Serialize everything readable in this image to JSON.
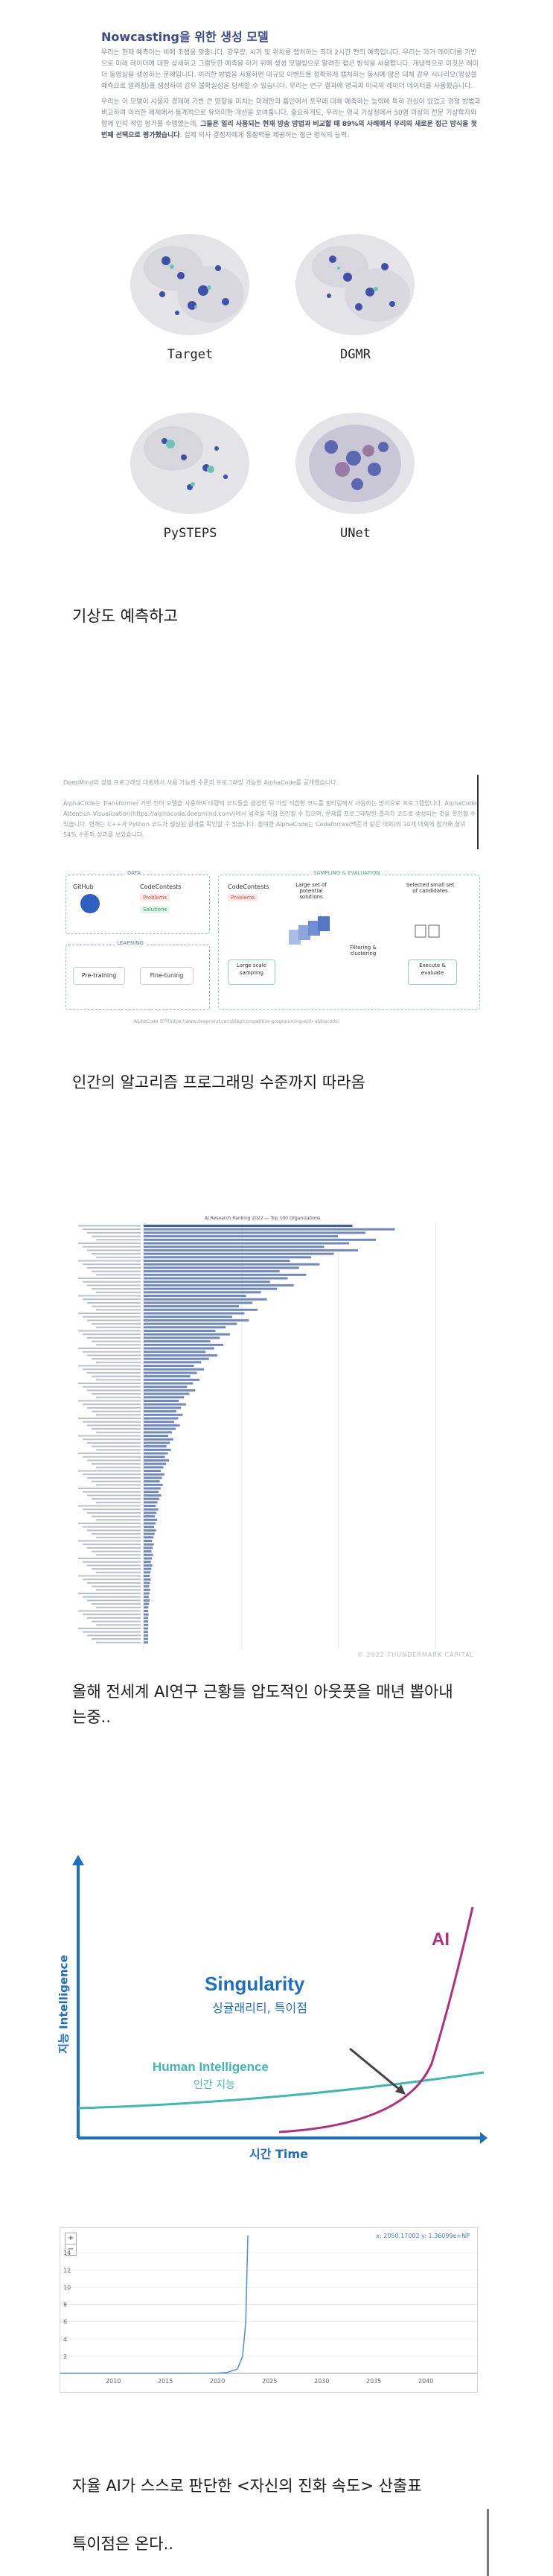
{
  "nowcasting": {
    "title": "Nowcasting을 위한 생성 모델",
    "paragraph1": "우리는 현재 예측이는 비에 초점을 맞춥니다. 강우량, 시기 및 위치를 캡처하는 최대 2시간 전의 예측입니다. 우리는 과거 레이더를 기반으로 미래 레이더에 대한 상세하고 그럴듯한 예측을 하기 위해 생성 모델링으로 알려진 접근 방식을 사용합니다. 개념적으로 이것은 레이더 동영상을 생성하는 문제입니다. 이러한 방법을 사용하면 대규모 이벤트를 정확하게 캡처하는 동시에 많은 대체 강우 시나리오(앙상블 예측으로 알려짐)를 생성하여 강우 불확실성을 탐색할 수 있습니다. 우리는 연구 결과에 영국과 미국의 레이더 데이터를 사용했습니다.",
    "paragraph2_a": "우리는 이 모델이 사용자 경제에 기반 큰 영향을 미치는 미래만의 흡인에서 포우에 대해 예측하는 능력에 특히 관심이 있었고 경쟁 방법과 비교하여 이러한 제체에서 통계적으로 유의미한 개선을 보여줍니다. 중요하게도, 우리는 영국 기상청에서 50명 이상의 전문 기상학자와 함께 인지 작업 평가를 수행했는데, ",
    "paragraph2_b": "그들은 일리 사용되는 현재 방송 방법과 비교할 때 89%의 사례에서 우리의 새로운 접근 방식을 첫 번째 선택으로 평가했습니다",
    "paragraph2_c": ". 실제 의사 결정자에게 통찰력을 제공하는 접근 방식의 능력.",
    "panels": [
      "Target",
      "DGMR",
      "PySTEPS",
      "UNet"
    ]
  },
  "captions": {
    "weather": "기상도 예측하고",
    "coding": "인간의 알고리즘 프로그래밍 수준까지 따라옴",
    "research_line1": "올해 전세계 AI연구 근황들 압도적인 아웃풋을 매년 뽑아내",
    "research_line2": "는중..",
    "autonomous": "자율 AI가 스스로 판단한 <자신의 진화 속도> 산출표",
    "singularity_coming": "특이점은 온다.."
  },
  "alphacode": {
    "intro": "DeepMind의 경쟁 프로그래밍 대회에서 사용 가능한 수준의 프로그래밍 가능한 AlphaCode를 공개했습니다.",
    "body": "AlphaCode는 Transformer 기반 언어 모델을 사용하여 대량의 코드들을 생성한 뒤 가장 적합한 코드를 필터링해서 사용하는 방식으로 프로그램합니다. AlphaCode Attention Visualization(https://alphacode.deepmind.com/)에서 생각을 직접 확인할 수 있으며, 문제를 프로그래밍한 결과가 코드로 생성되는 것을 확인할 수 있습니다. 현재는 C++과 Python 코드가 생성된 결과를 확인할 수 있습니다. 참여한 AlphaCode는 Codeforces(백준과 같은 대회)의 10개 대회에 참가해 상위 54% 수준의 성과를 보였습니다.",
    "data_label": "DATA",
    "learning_label": "LEARNING",
    "sampling_label": "SAMPLING & EVALUATION",
    "github": "GitHub",
    "codecontests": "CodeContests",
    "problems": "Problems",
    "solutions": "Solutions",
    "codecontests2": "CodeContests",
    "problems2": "Problems",
    "pretraining": "Pre-training",
    "finetuning": "Fine-tuning",
    "large_sampling": "Large scale sampling",
    "large_set": "Large set of potential solutions",
    "filtering": "Filtering & clustering",
    "selected": "Selected small set of candidates",
    "execute": "Execute & evaluate",
    "footer": "AlphaCode 요약(https://www.deepmind.com/blog/competitive-programming-with-alphacode)"
  },
  "research_chart": {
    "title": "AI Research Ranking 2022 — Top 100 Organizations",
    "watermark": "© 2022 THUNDERMARK CAPITAL"
  },
  "singularity": {
    "title": "Singularity",
    "subtitle": "싱귤래리티, 특이점",
    "ai_label": "AI",
    "human_label": "Human Intelligence",
    "human_sub": "인간 지능",
    "y_label": "지능 Intelligence",
    "x_label": "시간 Time"
  },
  "chart_data": {
    "type": "line",
    "x": [
      2005,
      2010,
      2015,
      2020,
      2021,
      2022,
      2022.5,
      2022.8,
      2023
    ],
    "series": [
      {
        "values": [
          0,
          0,
          0,
          0.02,
          0.1,
          0.5,
          2,
          6,
          16
        ]
      }
    ],
    "xticks": [
      "2010",
      "2015",
      "2020",
      "2025",
      "2030",
      "2035",
      "2040"
    ],
    "yticks": [
      "2",
      "4",
      "6",
      "8",
      "10",
      "12",
      "14"
    ],
    "xlim": [
      2005,
      2045
    ],
    "ylim": [
      0,
      16
    ],
    "readout": "x: 2050.17002  y: 1.36099e+NP",
    "colors": {
      "line": "#4a90d9"
    }
  }
}
